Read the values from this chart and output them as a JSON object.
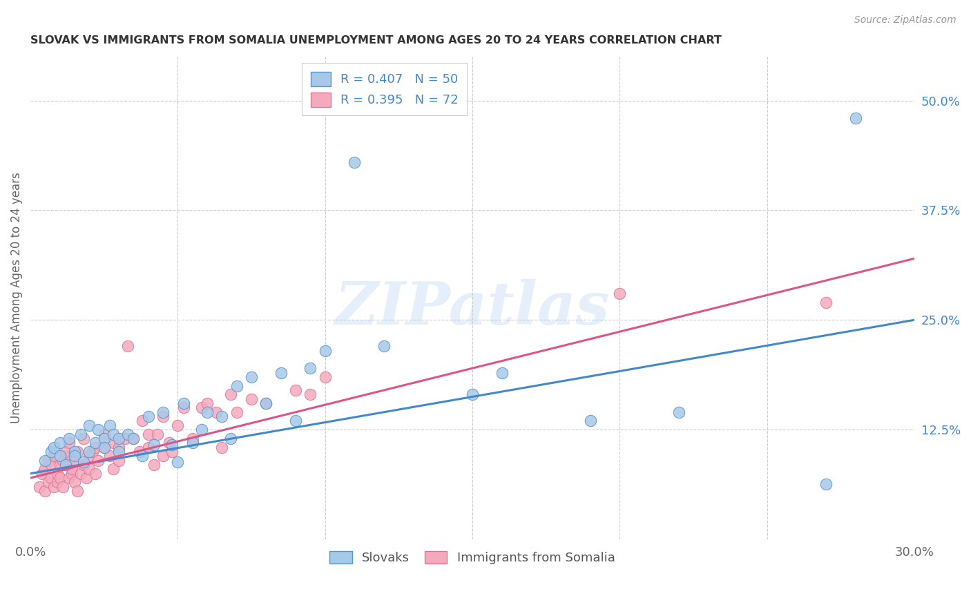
{
  "title": "SLOVAK VS IMMIGRANTS FROM SOMALIA UNEMPLOYMENT AMONG AGES 20 TO 24 YEARS CORRELATION CHART",
  "source": "Source: ZipAtlas.com",
  "ylabel": "Unemployment Among Ages 20 to 24 years",
  "xlim": [
    0.0,
    0.3
  ],
  "ylim": [
    0.0,
    0.55
  ],
  "xtick_positions": [
    0.0,
    0.05,
    0.1,
    0.15,
    0.2,
    0.25,
    0.3
  ],
  "xticklabels": [
    "0.0%",
    "",
    "",
    "",
    "",
    "",
    "30.0%"
  ],
  "ytick_positions": [
    0.0,
    0.125,
    0.25,
    0.375,
    0.5
  ],
  "yticklabels": [
    "",
    "12.5%",
    "25.0%",
    "37.5%",
    "50.0%"
  ],
  "blue_R": 0.407,
  "blue_N": 50,
  "pink_R": 0.395,
  "pink_N": 72,
  "blue_fill": "#a8c8e8",
  "blue_edge": "#5599cc",
  "pink_fill": "#f4aabc",
  "pink_edge": "#dd7799",
  "blue_line_color": "#4488cc",
  "pink_line_color": "#dd5588",
  "watermark": "ZIPatlas",
  "background_color": "#ffffff",
  "grid_color": "#cccccc",
  "blue_x": [
    0.005,
    0.007,
    0.008,
    0.01,
    0.01,
    0.012,
    0.013,
    0.015,
    0.015,
    0.017,
    0.018,
    0.02,
    0.02,
    0.022,
    0.023,
    0.025,
    0.025,
    0.027,
    0.028,
    0.03,
    0.03,
    0.033,
    0.035,
    0.038,
    0.04,
    0.042,
    0.045,
    0.048,
    0.05,
    0.052,
    0.055,
    0.058,
    0.06,
    0.065,
    0.068,
    0.07,
    0.075,
    0.08,
    0.085,
    0.09,
    0.095,
    0.1,
    0.11,
    0.12,
    0.15,
    0.16,
    0.19,
    0.22,
    0.27,
    0.28
  ],
  "blue_y": [
    0.09,
    0.1,
    0.105,
    0.095,
    0.11,
    0.085,
    0.115,
    0.1,
    0.095,
    0.12,
    0.088,
    0.13,
    0.1,
    0.11,
    0.125,
    0.115,
    0.105,
    0.13,
    0.12,
    0.115,
    0.1,
    0.12,
    0.115,
    0.095,
    0.14,
    0.108,
    0.145,
    0.108,
    0.088,
    0.155,
    0.11,
    0.125,
    0.145,
    0.14,
    0.115,
    0.175,
    0.185,
    0.155,
    0.19,
    0.135,
    0.195,
    0.215,
    0.43,
    0.22,
    0.165,
    0.19,
    0.135,
    0.145,
    0.063,
    0.48
  ],
  "pink_x": [
    0.003,
    0.004,
    0.005,
    0.005,
    0.006,
    0.006,
    0.007,
    0.007,
    0.008,
    0.008,
    0.009,
    0.009,
    0.01,
    0.01,
    0.011,
    0.011,
    0.012,
    0.012,
    0.013,
    0.013,
    0.014,
    0.014,
    0.015,
    0.015,
    0.016,
    0.016,
    0.017,
    0.018,
    0.018,
    0.019,
    0.02,
    0.02,
    0.021,
    0.022,
    0.022,
    0.023,
    0.025,
    0.025,
    0.027,
    0.028,
    0.028,
    0.03,
    0.03,
    0.032,
    0.033,
    0.035,
    0.037,
    0.038,
    0.04,
    0.04,
    0.042,
    0.043,
    0.045,
    0.045,
    0.047,
    0.048,
    0.05,
    0.052,
    0.055,
    0.058,
    0.06,
    0.063,
    0.065,
    0.068,
    0.07,
    0.075,
    0.08,
    0.09,
    0.095,
    0.1,
    0.2,
    0.27
  ],
  "pink_y": [
    0.06,
    0.075,
    0.08,
    0.055,
    0.09,
    0.065,
    0.07,
    0.085,
    0.095,
    0.06,
    0.065,
    0.075,
    0.085,
    0.07,
    0.06,
    0.09,
    0.095,
    0.1,
    0.07,
    0.11,
    0.075,
    0.08,
    0.065,
    0.09,
    0.1,
    0.055,
    0.075,
    0.115,
    0.085,
    0.07,
    0.095,
    0.08,
    0.1,
    0.105,
    0.075,
    0.09,
    0.105,
    0.12,
    0.095,
    0.11,
    0.08,
    0.105,
    0.09,
    0.115,
    0.22,
    0.115,
    0.1,
    0.135,
    0.12,
    0.105,
    0.085,
    0.12,
    0.095,
    0.14,
    0.11,
    0.1,
    0.13,
    0.15,
    0.115,
    0.15,
    0.155,
    0.145,
    0.105,
    0.165,
    0.145,
    0.16,
    0.155,
    0.17,
    0.165,
    0.185,
    0.28,
    0.27
  ],
  "blue_line_x": [
    0.0,
    0.3
  ],
  "blue_line_y": [
    0.075,
    0.25
  ],
  "pink_line_x": [
    0.0,
    0.3
  ],
  "pink_line_y": [
    0.07,
    0.32
  ]
}
